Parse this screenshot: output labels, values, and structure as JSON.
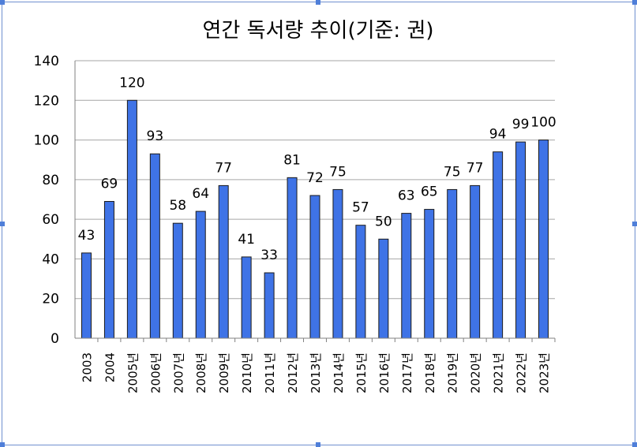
{
  "chart_data": {
    "type": "bar",
    "title": "연간 독서량 추이(기준: 권)",
    "xlabel": "",
    "ylabel": "",
    "ylim": [
      0,
      140
    ],
    "yticks": [
      0,
      20,
      40,
      60,
      80,
      100,
      120,
      140
    ],
    "grid": true,
    "legend": "none",
    "bar_color": "#3f73e6",
    "categories": [
      "2003",
      "2004",
      "2005년",
      "2006년",
      "2007년",
      "2008년",
      "2009년",
      "2010년",
      "2011년",
      "2012년",
      "2013년",
      "2014년",
      "2015년",
      "2016년",
      "2017년",
      "2018년",
      "2019년",
      "2020년",
      "2021년",
      "2022년",
      "2023년"
    ],
    "values": [
      43,
      69,
      120,
      93,
      58,
      64,
      77,
      41,
      33,
      81,
      72,
      75,
      57,
      50,
      63,
      65,
      75,
      77,
      94,
      99,
      100
    ]
  }
}
